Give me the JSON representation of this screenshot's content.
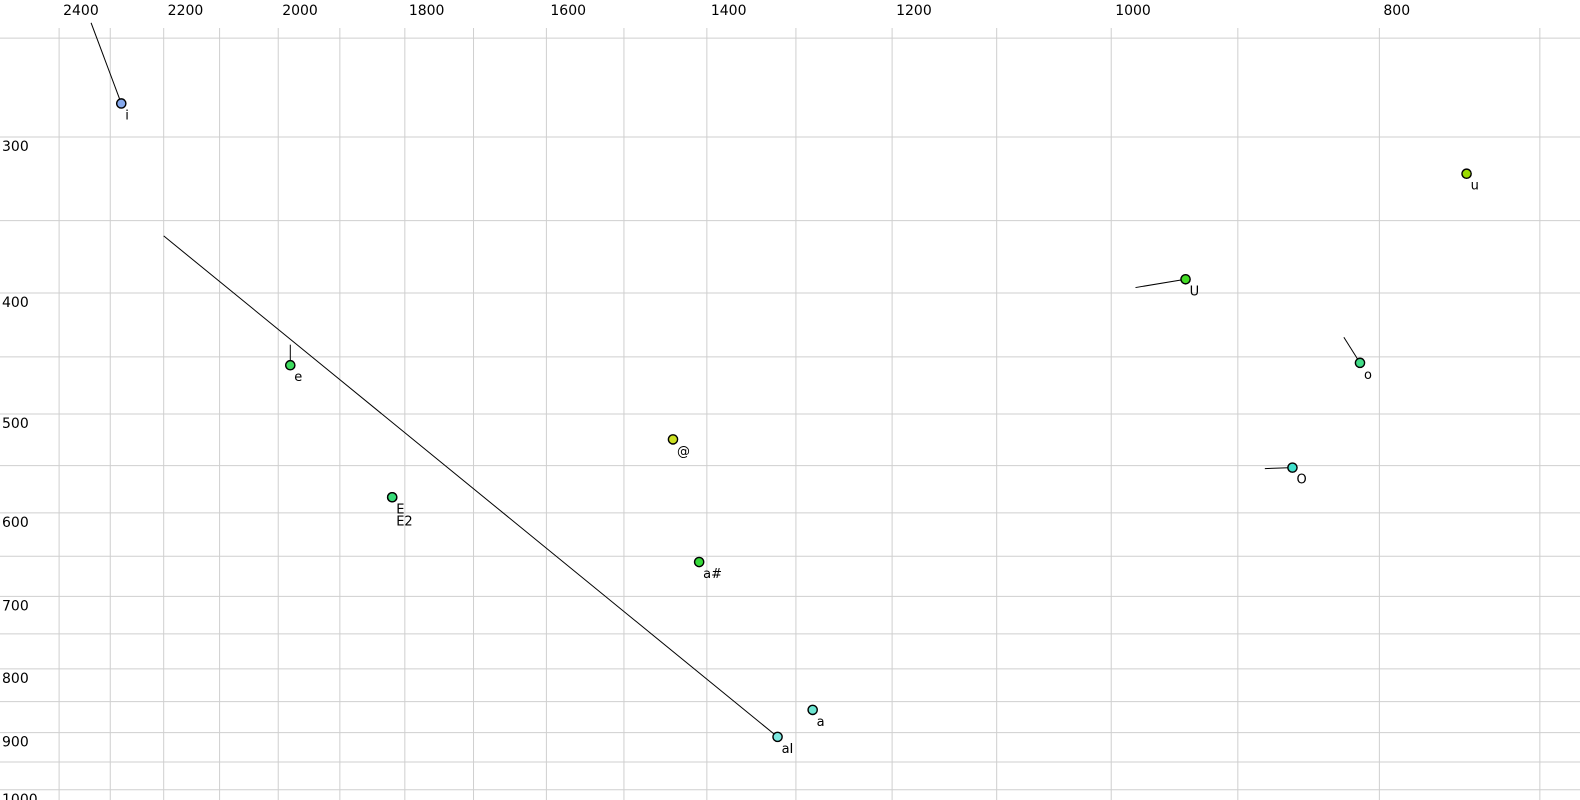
{
  "chart_data": {
    "type": "scatter",
    "description": "Vowel formant plot: F2 (Hz) horizontal reversed log axis, F1 (Hz) vertical log axis, vowel tokens as colored dots with glide lines",
    "background": "#ffffff",
    "grid_color": "#cfcfcf",
    "text_color": "#000000",
    "glide_line_color": "#000000",
    "x_axis": {
      "unit": "Hz",
      "scale": "log",
      "reversed": true,
      "left_value": 2521,
      "right_value": 677,
      "gridline_values": [
        2400,
        2300,
        2200,
        2100,
        2000,
        1900,
        1800,
        1700,
        1600,
        1500,
        1400,
        1300,
        1200,
        1100,
        1000,
        900,
        800,
        700
      ],
      "ticks": [
        {
          "value": 2400,
          "label": "2400"
        },
        {
          "value": 2200,
          "label": "2200"
        },
        {
          "value": 2000,
          "label": "2000"
        },
        {
          "value": 1800,
          "label": "1800"
        },
        {
          "value": 1600,
          "label": "1600"
        },
        {
          "value": 1400,
          "label": "1400"
        },
        {
          "value": 1200,
          "label": "1200"
        },
        {
          "value": 1000,
          "label": "1000"
        },
        {
          "value": 800,
          "label": "800"
        }
      ]
    },
    "y_axis": {
      "unit": "Hz",
      "scale": "log",
      "top_value": 233,
      "bottom_value": 1019,
      "gridline_values": [
        250,
        300,
        350,
        400,
        450,
        500,
        550,
        600,
        650,
        700,
        750,
        800,
        850,
        900,
        950,
        1000
      ],
      "ticks": [
        {
          "value": 300,
          "label": "300"
        },
        {
          "value": 400,
          "label": "400"
        },
        {
          "value": 500,
          "label": "500"
        },
        {
          "value": 600,
          "label": "600"
        },
        {
          "value": 700,
          "label": "700"
        },
        {
          "value": 800,
          "label": "800"
        },
        {
          "value": 900,
          "label": "900"
        },
        {
          "value": 1000,
          "label": "1000"
        }
      ]
    },
    "points": [
      {
        "label": "i",
        "f2": 2279,
        "f1": 282,
        "color": "#87aaee",
        "glide_to": {
          "f2": 2337,
          "f1": 243
        }
      },
      {
        "label": "u",
        "f2": 744,
        "f1": 321,
        "color": "#9bdc00"
      },
      {
        "label": "U",
        "f2": 940,
        "f1": 390,
        "color": "#43dc25",
        "glide_to": {
          "f2": 980,
          "f1": 396
        }
      },
      {
        "label": "e",
        "f2": 1980,
        "f1": 457,
        "color": "#3edc5f",
        "glide_to": {
          "f2": 1980,
          "f1": 440
        }
      },
      {
        "label": "o",
        "f2": 813,
        "f1": 455,
        "color": "#41dc87",
        "glide_to": {
          "f2": 824,
          "f1": 434
        }
      },
      {
        "label": "@",
        "f2": 1440,
        "f1": 524,
        "color": "#cbe022"
      },
      {
        "label": "O",
        "f2": 860,
        "f1": 552,
        "color": "#40e0cc",
        "glide_to": {
          "f2": 880,
          "f1": 553
        }
      },
      {
        "label": "E",
        "f2": 1819,
        "f1": 583,
        "color": "#38dc78"
      },
      {
        "label": "E2",
        "f2": 1819,
        "f1": 583,
        "color": "#38dc78",
        "label_dy": 28
      },
      {
        "label": "a#",
        "f2": 1409,
        "f1": 657,
        "color": "#36da3a"
      },
      {
        "label": "a",
        "f2": 1282,
        "f1": 863,
        "color": "#6ce6d2"
      },
      {
        "label": "aI",
        "f2": 1320,
        "f1": 907,
        "color": "#7ce8e0",
        "glide_to": {
          "f2": 2200,
          "f1": 360
        }
      }
    ]
  }
}
